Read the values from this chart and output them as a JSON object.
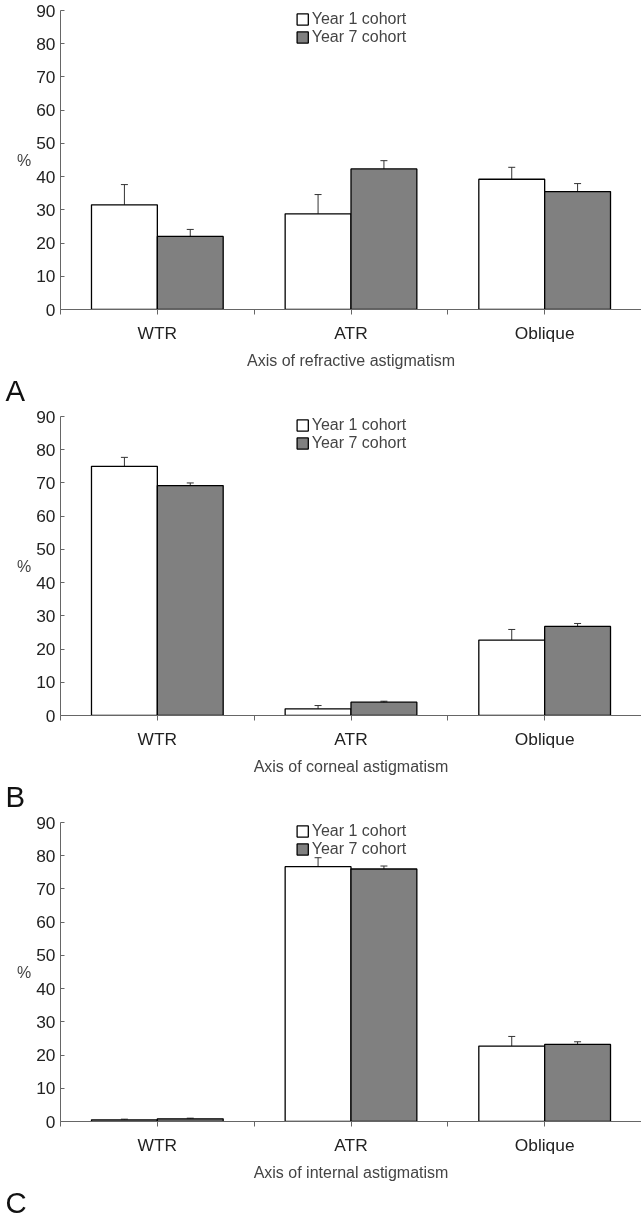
{
  "chart_data": [
    {
      "type": "bar",
      "categories": [
        "WTR",
        "ATR",
        "Oblique"
      ],
      "xlabel": "Axis of refractive astigmatism",
      "ylabel": "%",
      "annotations": [
        "A"
      ],
      "ylim": [
        0,
        90
      ],
      "yticks": [
        0,
        10,
        20,
        30,
        40,
        50,
        60,
        70,
        80,
        90
      ],
      "grid": false,
      "legend": "top",
      "series": [
        {
          "name": "Year 1 cohort",
          "color": "#ffffff",
          "values": [
            31.5,
            28.8,
            39.2
          ],
          "errors": [
            6.1,
            5.8,
            3.6
          ]
        },
        {
          "name": "Year 7 cohort",
          "color": "#808080",
          "values": [
            22,
            42.3,
            35.5
          ],
          "errors": [
            2.1,
            2.5,
            2.4
          ]
        }
      ]
    },
    {
      "type": "bar",
      "categories": [
        "WTR",
        "ATR",
        "Oblique"
      ],
      "xlabel": "Axis of corneal astigmatism",
      "ylabel": "%",
      "annotations": [
        "B"
      ],
      "ylim": [
        0,
        90
      ],
      "yticks": [
        0,
        10,
        20,
        30,
        40,
        50,
        60,
        70,
        80,
        90
      ],
      "grid": false,
      "legend": "top",
      "series": [
        {
          "name": "Year 1 cohort",
          "color": "#ffffff",
          "values": [
            75,
            2,
            22.7
          ],
          "errors": [
            2.7,
            1,
            3.2
          ]
        },
        {
          "name": "Year 7 cohort",
          "color": "#808080",
          "values": [
            69.2,
            4,
            26.8
          ],
          "errors": [
            0.8,
            0.3,
            0.9
          ]
        }
      ]
    },
    {
      "type": "bar",
      "categories": [
        "WTR",
        "ATR",
        "Oblique"
      ],
      "xlabel": "Axis of internal astigmatism",
      "ylabel": "%",
      "annotations": [
        "C"
      ],
      "ylim": [
        0,
        90
      ],
      "yticks": [
        0,
        10,
        20,
        30,
        40,
        50,
        60,
        70,
        80,
        90
      ],
      "grid": false,
      "legend": "top",
      "series": [
        {
          "name": "Year 1 cohort",
          "color": "#ffffff",
          "values": [
            0.5,
            76.7,
            22.7
          ],
          "errors": [
            0.2,
            2.7,
            2.9
          ]
        },
        {
          "name": "Year 7 cohort",
          "color": "#808080",
          "values": [
            0.8,
            76,
            23.2
          ],
          "errors": [
            0.2,
            0.9,
            0.8
          ]
        }
      ]
    }
  ]
}
